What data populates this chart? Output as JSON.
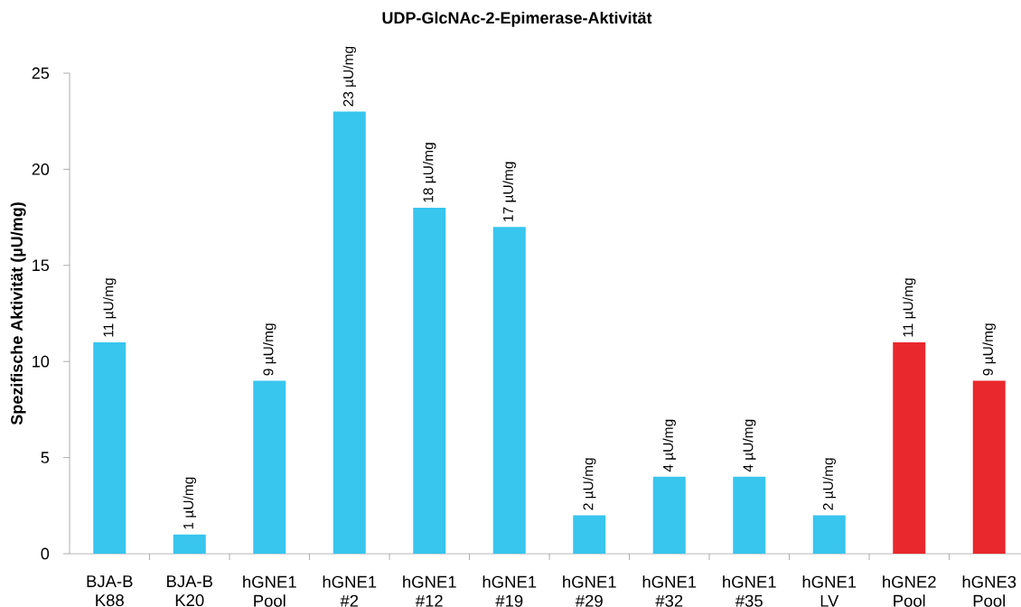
{
  "chart_data": {
    "type": "bar",
    "title": "UDP-GlcNAc-2-Epimerase-Aktivität",
    "ylabel": "Spezifische Aktivität (µU/mg)",
    "categories": [
      "BJA-B K88",
      "BJA-B K20",
      "hGNE1 Pool",
      "hGNE1 #2",
      "hGNE1 #12",
      "hGNE1 #19",
      "hGNE1 #29",
      "hGNE1 #32",
      "hGNE1 #35",
      "hGNE1 LV",
      "hGNE2 Pool",
      "hGNE3 Pool"
    ],
    "values": [
      11,
      1,
      9,
      23,
      18,
      17,
      2,
      4,
      4,
      2,
      11,
      9
    ],
    "colors": [
      "#38c5ee",
      "#38c5ee",
      "#38c5ee",
      "#38c5ee",
      "#38c5ee",
      "#38c5ee",
      "#38c5ee",
      "#38c5ee",
      "#38c5ee",
      "#38c5ee",
      "#e8282d",
      "#e8282d"
    ],
    "value_labels": [
      "11 µU/mg",
      "1 µU/mg",
      "9 µU/mg",
      "23 µU/mg",
      "18 µU/mg",
      "17 µU/mg",
      "2 µU/mg",
      "4 µU/mg",
      "4 µU/mg",
      "2 µU/mg",
      "11 µU/mg",
      "9 µU/mg"
    ],
    "ylim": [
      0,
      25
    ],
    "yticks": [
      0,
      5,
      10,
      15,
      20,
      25
    ]
  }
}
